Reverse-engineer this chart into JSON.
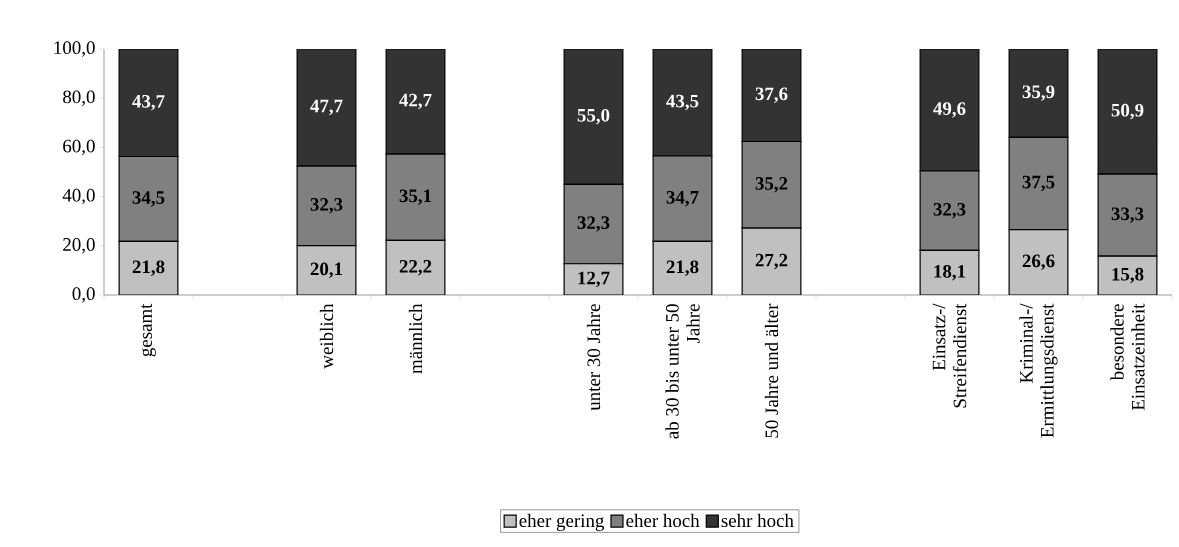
{
  "chart_data": {
    "type": "bar",
    "stacked": true,
    "categories": [
      "gesamt",
      null,
      "weiblich",
      "männlich",
      null,
      "unter 30 Jahre",
      "ab 30 bis unter 50 Jahre",
      "50 Jahre und älter",
      null,
      "Einsatz-/ Streifendienst",
      "Kriminal-/ Ermittlungsdienst",
      "besondere Einsatzeinheit"
    ],
    "series": [
      {
        "name": "eher gering",
        "color": "#c0c0c0",
        "values": [
          21.8,
          null,
          20.1,
          22.2,
          null,
          12.7,
          21.8,
          27.2,
          null,
          18.1,
          26.6,
          15.8
        ],
        "value_labels": [
          "21,8",
          null,
          "20,1",
          "22,2",
          null,
          "12,7",
          "21,8",
          "27,2",
          null,
          "18,1",
          "26,6",
          "15,8"
        ]
      },
      {
        "name": "eher hoch",
        "color": "#808080",
        "values": [
          34.5,
          null,
          32.3,
          35.1,
          null,
          32.3,
          34.7,
          35.2,
          null,
          32.3,
          37.5,
          33.3
        ],
        "value_labels": [
          "34,5",
          null,
          "32,3",
          "35,1",
          null,
          "32,3",
          "34,7",
          "35,2",
          null,
          "32,3",
          "37,5",
          "33,3"
        ]
      },
      {
        "name": "sehr hoch",
        "color": "#333333",
        "values": [
          43.7,
          null,
          47.7,
          42.7,
          null,
          55.0,
          43.5,
          37.6,
          null,
          49.6,
          35.9,
          50.9
        ],
        "value_labels": [
          "43,7",
          null,
          "47,7",
          "42,7",
          null,
          "55,0",
          "43,5",
          "37,6",
          null,
          "49,6",
          "35,9",
          "50,9"
        ]
      }
    ],
    "ylim": [
      0,
      100
    ],
    "yticks": [
      {
        "value": 0,
        "label": "0,0"
      },
      {
        "value": 20,
        "label": "20,0"
      },
      {
        "value": 40,
        "label": "40,0"
      },
      {
        "value": 60,
        "label": "60,0"
      },
      {
        "value": 80,
        "label": "80,0"
      },
      {
        "value": 100,
        "label": "100,0"
      }
    ],
    "grid": false,
    "legend": "bottom"
  }
}
